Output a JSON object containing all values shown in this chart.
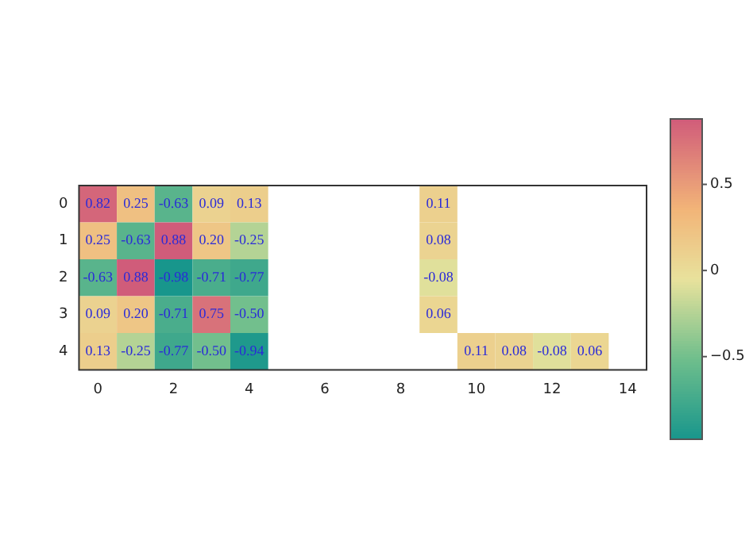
{
  "chart_data": {
    "type": "heatmap",
    "cells": [
      [
        0.82,
        0.25,
        -0.63,
        0.09,
        0.13,
        null,
        null,
        null,
        null,
        0.11,
        null,
        null,
        null,
        null,
        null
      ],
      [
        0.25,
        -0.63,
        0.88,
        0.2,
        -0.25,
        null,
        null,
        null,
        null,
        0.08,
        null,
        null,
        null,
        null,
        null
      ],
      [
        -0.63,
        0.88,
        -0.98,
        -0.71,
        -0.77,
        null,
        null,
        null,
        null,
        -0.08,
        null,
        null,
        null,
        null,
        null
      ],
      [
        0.09,
        0.2,
        -0.71,
        0.75,
        -0.5,
        null,
        null,
        null,
        null,
        0.06,
        null,
        null,
        null,
        null,
        null
      ],
      [
        0.13,
        -0.25,
        -0.77,
        -0.5,
        -0.94,
        null,
        null,
        null,
        null,
        null,
        0.11,
        0.08,
        -0.08,
        0.06,
        null
      ]
    ],
    "cell_labels": [
      [
        "0.82",
        "0.25",
        "-0.63",
        "0.09",
        "0.13",
        null,
        null,
        null,
        null,
        "0.11",
        null,
        null,
        null,
        null,
        null
      ],
      [
        "0.25",
        "-0.63",
        "0.88",
        "0.20",
        "-0.25",
        null,
        null,
        null,
        null,
        "0.08",
        null,
        null,
        null,
        null,
        null
      ],
      [
        "-0.63",
        "0.88",
        "-0.98",
        "-0.71",
        "-0.77",
        null,
        null,
        null,
        null,
        "-0.08",
        null,
        null,
        null,
        null,
        null
      ],
      [
        "0.09",
        "0.20",
        "-0.71",
        "0.75",
        "-0.50",
        null,
        null,
        null,
        null,
        "0.06",
        null,
        null,
        null,
        null,
        null
      ],
      [
        "0.13",
        "-0.25",
        "-0.77",
        "-0.50",
        "-0.94",
        null,
        null,
        null,
        null,
        null,
        "0.11",
        "0.08",
        "-0.08",
        "0.06",
        null
      ]
    ],
    "y_categories": [
      "0",
      "1",
      "2",
      "3",
      "4"
    ],
    "xlim": [
      -0.5,
      14.5
    ],
    "xticks": [
      0,
      2,
      4,
      6,
      8,
      10,
      12,
      14
    ],
    "clim": [
      -0.98,
      0.88
    ],
    "cticks": [
      {
        "value": -0.5,
        "label": "−0.5"
      },
      0,
      0.5
    ]
  }
}
